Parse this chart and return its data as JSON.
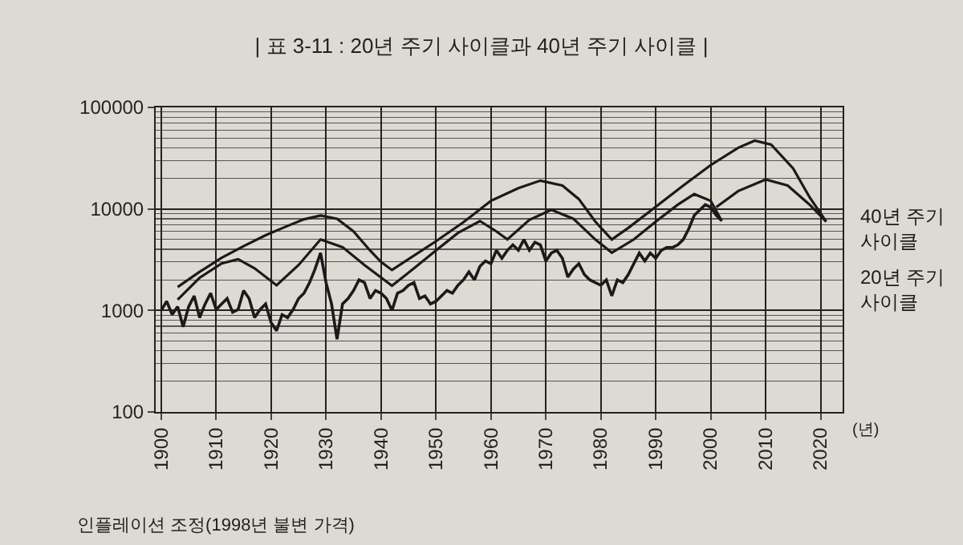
{
  "chart_data": {
    "type": "line",
    "title": "| 표 3-11 : 20년 주기 사이클과 40년 주기 사이클 |",
    "xlabel": "(년)",
    "annotations": [
      "인플레이션 조정(1998년 불변 가격)"
    ],
    "xlim": [
      1899,
      2024
    ],
    "xticks": [
      1900,
      1910,
      1920,
      1930,
      1940,
      1950,
      1960,
      1970,
      1980,
      1990,
      2000,
      2010,
      2020
    ],
    "ylim": [
      100,
      100000
    ],
    "yticks": [
      100,
      1000,
      10000,
      100000
    ],
    "log": true,
    "grid": true,
    "legend": false,
    "marker": "none",
    "line_style": "solid",
    "series": [
      {
        "color": "#1a1a1a",
        "x": [
          1900,
          1901,
          1902,
          1903,
          1904,
          1905,
          1906,
          1907,
          1908,
          1909,
          1910,
          1911,
          1912,
          1913,
          1914,
          1915,
          1916,
          1917,
          1918,
          1919,
          1920,
          1921,
          1922,
          1923,
          1924,
          1925,
          1926,
          1927,
          1928,
          1929,
          1930,
          1931,
          1932,
          1933,
          1934,
          1935,
          1936,
          1937,
          1938,
          1939,
          1940,
          1941,
          1942,
          1943,
          1944,
          1945,
          1946,
          1947,
          1948,
          1949,
          1950,
          1951,
          1952,
          1953,
          1954,
          1955,
          1956,
          1957,
          1958,
          1959,
          1960,
          1961,
          1962,
          1963,
          1964,
          1965,
          1966,
          1967,
          1968,
          1969,
          1970,
          1971,
          1972,
          1973,
          1974,
          1975,
          1976,
          1977,
          1978,
          1979,
          1980,
          1981,
          1982,
          1983,
          1984,
          1985,
          1986,
          1987,
          1988,
          1989,
          1990,
          1991,
          1992,
          1993,
          1994,
          1995,
          1996,
          1997,
          1998,
          1999,
          2000,
          2001,
          2002
        ],
        "values": [
          1000,
          1230,
          910,
          1090,
          690,
          1090,
          1390,
          850,
          1160,
          1480,
          1020,
          1160,
          1310,
          960,
          1020,
          1570,
          1310,
          850,
          1020,
          1160,
          760,
          630,
          910,
          850,
          1020,
          1310,
          1480,
          1880,
          2560,
          3680,
          1880,
          1160,
          520,
          1160,
          1310,
          1570,
          2000,
          1880,
          1310,
          1570,
          1480,
          1310,
          1000,
          1480,
          1570,
          1770,
          1880,
          1310,
          1390,
          1160,
          1230,
          1390,
          1570,
          1480,
          1770,
          2000,
          2400,
          2000,
          2720,
          3070,
          2890,
          3910,
          3260,
          3910,
          4420,
          3910,
          4990,
          3910,
          4700,
          4420,
          3070,
          3680,
          3910,
          3260,
          2130,
          2560,
          2890,
          2260,
          2000,
          1880,
          1770,
          2000,
          1390,
          2000,
          1880,
          2260,
          2890,
          3680,
          3070,
          3680,
          3260,
          3910,
          4160,
          4160,
          4420,
          4990,
          6370,
          8640,
          9750,
          11000,
          10400,
          8640,
          7650
        ]
      },
      {
        "name": "40년 주기 사이클",
        "color": "#1a1a1a",
        "x": [
          1903,
          1907,
          1911,
          1915,
          1919,
          1923,
          1926,
          1929,
          1932,
          1935,
          1938,
          1940,
          1942,
          1945,
          1950,
          1955,
          1960,
          1965,
          1969,
          1973,
          1976,
          1979,
          1982,
          1985,
          1990,
          1995,
          2000,
          2005,
          2008,
          2011,
          2015,
          2018,
          2021
        ],
        "values": [
          1700,
          2400,
          3300,
          4300,
          5500,
          6800,
          7900,
          8600,
          8000,
          6000,
          3900,
          3000,
          2500,
          3200,
          4800,
          7400,
          12000,
          16000,
          19000,
          17000,
          12500,
          7500,
          5000,
          6500,
          10500,
          17000,
          27000,
          40000,
          47000,
          43000,
          25000,
          13000,
          7500
        ]
      },
      {
        "name": "20년 주기 사이클",
        "color": "#1a1a1a",
        "x": [
          1903,
          1907,
          1911,
          1914,
          1917,
          1921,
          1925,
          1929,
          1933,
          1937,
          1942,
          1946,
          1950,
          1954,
          1958,
          1961,
          1963,
          1967,
          1971,
          1975,
          1979,
          1982,
          1986,
          1990,
          1994,
          1997,
          2000,
          2002,
          2001.5,
          2001,
          2005,
          2010,
          2014,
          2018,
          2021
        ],
        "values": [
          1280,
          2100,
          2900,
          3200,
          2600,
          1770,
          2800,
          5000,
          4200,
          2800,
          1750,
          2600,
          3900,
          5800,
          7600,
          6000,
          5000,
          7800,
          9800,
          8000,
          5000,
          3700,
          5000,
          7500,
          11000,
          14000,
          12000,
          7600,
          null,
          10400,
          15000,
          19500,
          17000,
          11000,
          7500
        ]
      }
    ]
  }
}
